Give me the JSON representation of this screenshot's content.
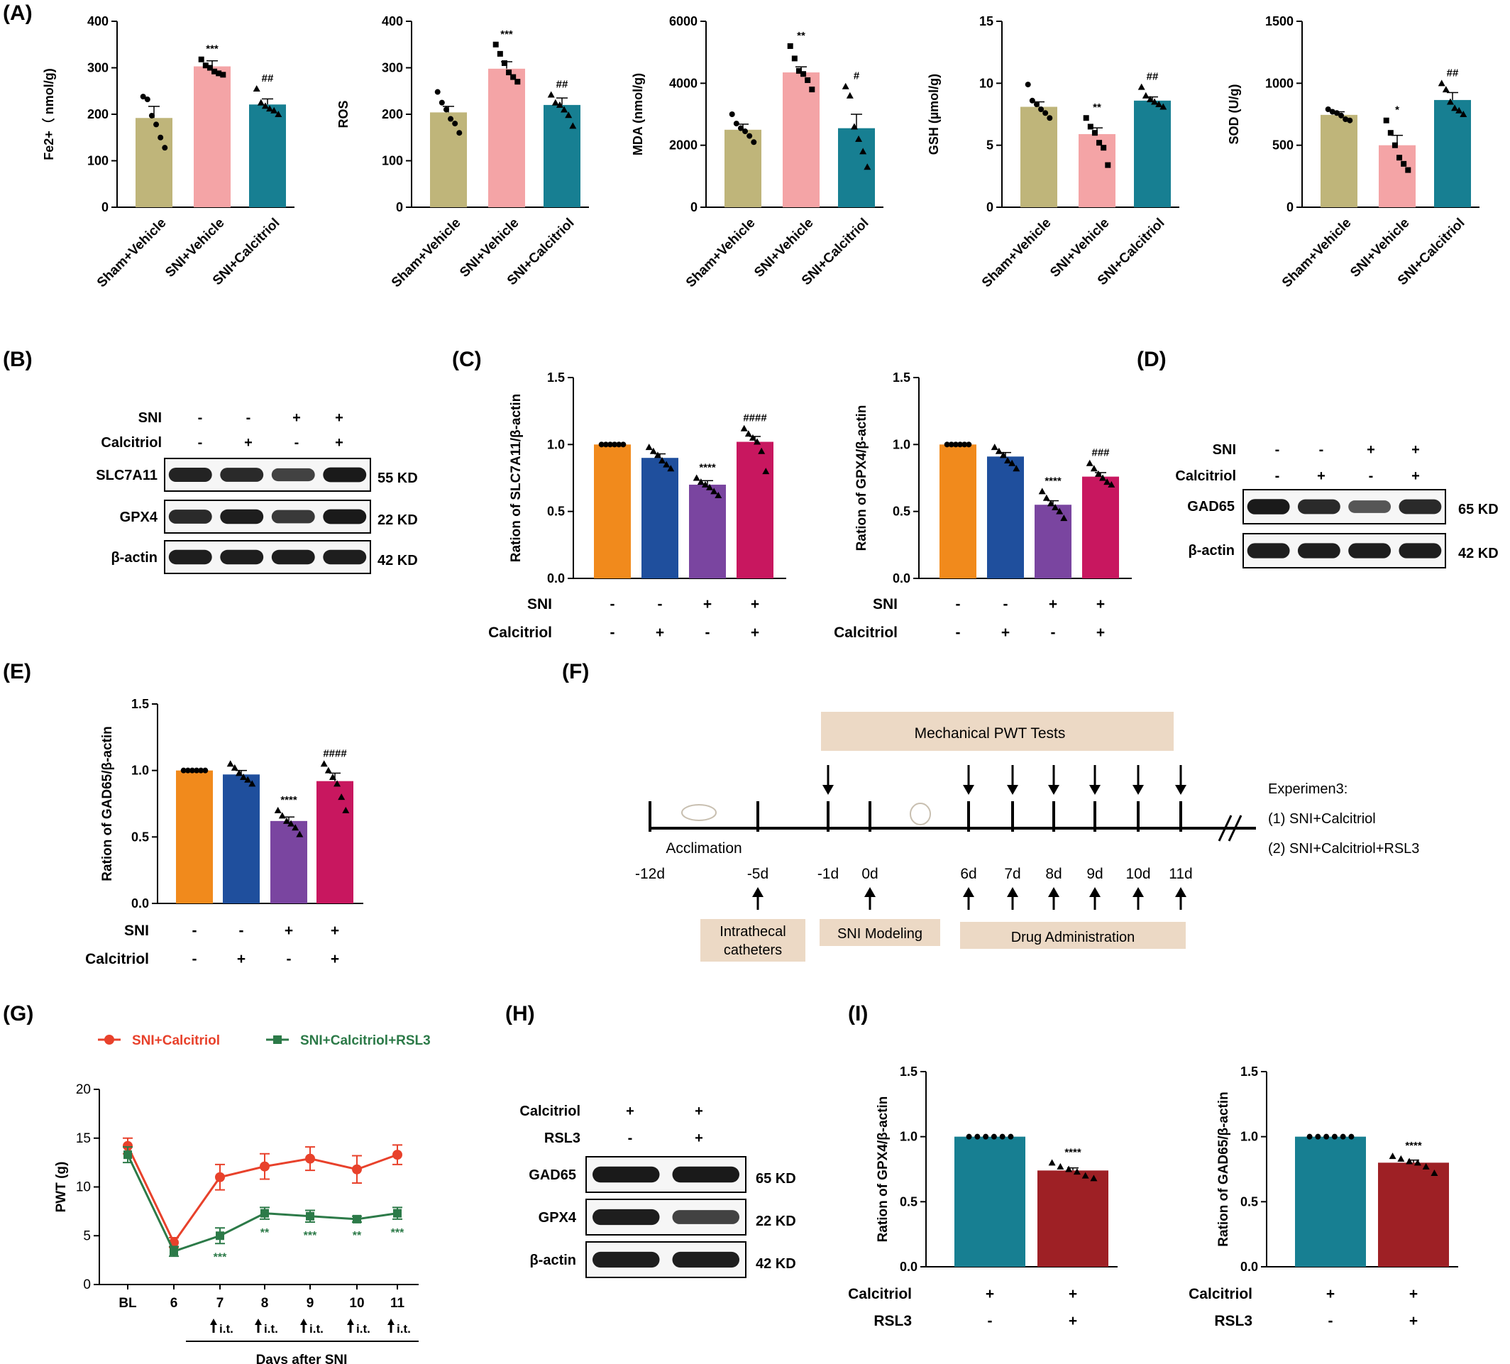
{
  "panel_labels": {
    "A": "(A)",
    "B": "(B)",
    "C": "(C)",
    "D": "(D)",
    "E": "(E)",
    "F": "(F)",
    "G": "(G)",
    "H": "(H)",
    "I": "(I)"
  },
  "colors": {
    "olive": "#bfb57a",
    "pink": "#f4a4a6",
    "teal": "#177f92",
    "orange": "#f18a1c",
    "blue": "#1f4f9d",
    "purple": "#7a45a0",
    "magenta": "#c8175f",
    "darkred": "#9e2025",
    "red_line": "#e8412b",
    "green_line": "#2c7a48",
    "timeline_box": "#ecd9c5"
  },
  "panelA": {
    "categories": [
      "Sham+Vehicle",
      "SNI+Vehicle",
      "SNI+Calcitriol"
    ],
    "charts": [
      {
        "ylabel": "Fe2+（ nmol/g)",
        "ylim": [
          0,
          400
        ],
        "ticks": [
          "0",
          "100",
          "200",
          "300",
          "400"
        ],
        "values": [
          192,
          303,
          221
        ],
        "errors": [
          25,
          12,
          12
        ],
        "points": [
          [
            238,
            232,
            197,
            178,
            150,
            128
          ],
          [
            318,
            305,
            300,
            292,
            288,
            285
          ],
          [
            255,
            225,
            218,
            212,
            208,
            200
          ]
        ],
        "sig": [
          "",
          "***",
          "##"
        ]
      },
      {
        "ylabel": "ROS",
        "ylim": [
          0,
          400
        ],
        "ticks": [
          "0",
          "100",
          "200",
          "300",
          "400"
        ],
        "values": [
          204,
          298,
          220
        ],
        "errors": [
          13,
          15,
          15
        ],
        "points": [
          [
            248,
            225,
            210,
            190,
            180,
            160
          ],
          [
            350,
            330,
            310,
            290,
            280,
            270
          ],
          [
            242,
            225,
            220,
            210,
            198,
            175
          ]
        ],
        "sig": [
          "",
          "***",
          "##"
        ]
      },
      {
        "ylabel": "MDA (nmol/g)",
        "ylim": [
          0,
          6000
        ],
        "ticks": [
          "0",
          "2000",
          "4000",
          "6000"
        ],
        "values": [
          2500,
          4350,
          2550
        ],
        "errors": [
          180,
          180,
          450
        ],
        "points": [
          [
            3000,
            2700,
            2550,
            2450,
            2300,
            2100
          ],
          [
            5200,
            4800,
            4400,
            4300,
            4100,
            3800
          ],
          [
            3900,
            3600,
            2600,
            2200,
            1800,
            1300
          ]
        ],
        "sig": [
          "",
          "**",
          "#"
        ]
      },
      {
        "ylabel": "GSH (µmol/g)",
        "ylim": [
          0,
          15
        ],
        "ticks": [
          "0",
          "5",
          "10",
          "15"
        ],
        "values": [
          8.1,
          5.9,
          8.6
        ],
        "errors": [
          0.4,
          0.5,
          0.3
        ],
        "points": [
          [
            9.9,
            8.6,
            8.3,
            7.9,
            7.6,
            7.2
          ],
          [
            7.2,
            6.5,
            6.0,
            5.2,
            4.8,
            3.4
          ],
          [
            9.7,
            9.0,
            8.7,
            8.5,
            8.3,
            8.1
          ]
        ],
        "sig": [
          "",
          "**",
          "##"
        ]
      },
      {
        "ylabel": "SOD (U/g)",
        "ylim": [
          0,
          1500
        ],
        "ticks": [
          "0",
          "500",
          "1000",
          "1500"
        ],
        "values": [
          745,
          500,
          865
        ],
        "errors": [
          25,
          80,
          60
        ],
        "points": [
          [
            790,
            770,
            760,
            740,
            710,
            700
          ],
          [
            700,
            600,
            500,
            400,
            350,
            300
          ],
          [
            1000,
            950,
            850,
            800,
            780,
            750
          ]
        ],
        "sig": [
          "",
          "*",
          "##"
        ]
      }
    ]
  },
  "panelB": {
    "row_labels": [
      "SNI",
      "Calcitriol"
    ],
    "signs": [
      [
        "-",
        "-",
        "+",
        "+"
      ],
      [
        "-",
        "+",
        "-",
        "+"
      ]
    ],
    "bands": [
      "SLC7A11",
      "GPX4",
      "β-actin"
    ],
    "kd": [
      "55 KD",
      "22 KD",
      "42 KD"
    ]
  },
  "panelC": {
    "charts": [
      {
        "ylabel": "Ration of SLC7A11/β-actin",
        "ylim": [
          0,
          1.5
        ],
        "ticks": [
          "0.0",
          "0.5",
          "1.0",
          "1.5"
        ],
        "values": [
          1.0,
          0.9,
          0.7,
          1.02
        ],
        "errors": [
          0,
          0.03,
          0.03,
          0.04
        ],
        "points": [
          [
            1,
            1,
            1,
            1,
            1,
            1
          ],
          [
            0.98,
            0.95,
            0.92,
            0.88,
            0.85,
            0.82
          ],
          [
            0.75,
            0.72,
            0.7,
            0.68,
            0.65,
            0.62
          ],
          [
            1.12,
            1.08,
            1.05,
            1.02,
            0.95,
            0.8
          ]
        ],
        "sig": [
          "",
          "",
          "****",
          "####"
        ]
      },
      {
        "ylabel": "Ration of GPX4/β-actin",
        "ylim": [
          0,
          1.5
        ],
        "ticks": [
          "0.0",
          "0.5",
          "1.0",
          "1.5"
        ],
        "values": [
          1.0,
          0.91,
          0.55,
          0.76
        ],
        "errors": [
          0,
          0.03,
          0.03,
          0.03
        ],
        "points": [
          [
            1,
            1,
            1,
            1,
            1,
            1
          ],
          [
            0.98,
            0.95,
            0.92,
            0.88,
            0.86,
            0.82
          ],
          [
            0.65,
            0.6,
            0.56,
            0.53,
            0.5,
            0.45
          ],
          [
            0.86,
            0.82,
            0.78,
            0.75,
            0.72,
            0.7
          ]
        ],
        "sig": [
          "",
          "",
          "****",
          "###"
        ]
      }
    ],
    "row_labels": [
      "SNI",
      "Calcitriol"
    ],
    "signs": [
      [
        "-",
        "-",
        "+",
        "+"
      ],
      [
        "-",
        "+",
        "-",
        "+"
      ]
    ]
  },
  "panelD": {
    "row_labels": [
      "SNI",
      "Calcitriol"
    ],
    "signs": [
      [
        "-",
        "-",
        "+",
        "+"
      ],
      [
        "-",
        "+",
        "-",
        "+"
      ]
    ],
    "bands": [
      "GAD65",
      "β-actin"
    ],
    "kd": [
      "65 KD",
      "42 KD"
    ]
  },
  "panelE": {
    "chart": {
      "ylabel": "Ration of GAD65/β-actin",
      "ylim": [
        0,
        1.5
      ],
      "ticks": [
        "0.0",
        "0.5",
        "1.0",
        "1.5"
      ],
      "values": [
        1.0,
        0.97,
        0.62,
        0.92
      ],
      "errors": [
        0,
        0.03,
        0.03,
        0.06
      ],
      "points": [
        [
          1,
          1,
          1,
          1,
          1,
          1
        ],
        [
          1.05,
          1.02,
          0.98,
          0.95,
          0.93,
          0.9
        ],
        [
          0.7,
          0.66,
          0.62,
          0.6,
          0.57,
          0.52
        ],
        [
          1.05,
          1.0,
          0.95,
          0.9,
          0.8,
          0.7
        ]
      ],
      "sig": [
        "",
        "",
        "****",
        "####"
      ]
    },
    "row_labels": [
      "SNI",
      "Calcitriol"
    ],
    "signs": [
      [
        "-",
        "-",
        "+",
        "+"
      ],
      [
        "-",
        "+",
        "-",
        "+"
      ]
    ]
  },
  "panelF": {
    "top_box": "Mechanical PWT Tests",
    "days": [
      "-12d",
      "-5d",
      "-1d",
      "0d",
      "6d",
      "7d",
      "8d",
      "9d",
      "10d",
      "11d"
    ],
    "acclimation": "Acclimation",
    "box_catheter_line1": "Intrathecal",
    "box_catheter_line2": "catheters",
    "box_modeling": "SNI Modeling",
    "box_drug": "Drug Administration",
    "exp_title": "Experimen3:",
    "exp_items": [
      "(1) SNI+Calcitriol",
      "(2) SNI+Calcitriol+RSL3"
    ]
  },
  "panelG": {
    "type": "line",
    "legend": [
      "SNI+Calcitriol",
      "SNI+Calcitriol+RSL3"
    ],
    "ylabel": "PWT (g)",
    "xlabel": "Days after SNI",
    "x": [
      "BL",
      "6",
      "7",
      "8",
      "9",
      "10",
      "11"
    ],
    "ylim": [
      0,
      20
    ],
    "ticks": [
      "0",
      "5",
      "10",
      "15",
      "20"
    ],
    "series": [
      {
        "name": "SNI+Calcitriol",
        "values": [
          14.2,
          4.3,
          11.0,
          12.1,
          12.9,
          11.8,
          13.3
        ],
        "errors": [
          0.8,
          0.5,
          1.3,
          1.3,
          1.2,
          1.4,
          1.0
        ]
      },
      {
        "name": "SNI+Calcitriol+RSL3",
        "values": [
          13.3,
          3.4,
          5.0,
          7.3,
          7.0,
          6.7,
          7.3
        ],
        "errors": [
          0.8,
          0.5,
          0.8,
          0.6,
          0.6,
          0.3,
          0.6
        ]
      }
    ],
    "sig": [
      "",
      "",
      "***",
      "**",
      "***",
      "**",
      "***"
    ],
    "it_label": "i.t."
  },
  "panelH": {
    "row_labels": [
      "Calcitriol",
      "RSL3"
    ],
    "signs": [
      [
        "+",
        "+"
      ],
      [
        "-",
        "+"
      ]
    ],
    "bands": [
      "GAD65",
      "GPX4",
      "β-actin"
    ],
    "kd": [
      "65 KD",
      "22 KD",
      "42 KD"
    ]
  },
  "panelI": {
    "charts": [
      {
        "ylabel": "Ration of GPX4/β-actin",
        "ylim": [
          0,
          1.5
        ],
        "ticks": [
          "0.0",
          "0.5",
          "1.0",
          "1.5"
        ],
        "values": [
          1.0,
          0.74
        ],
        "errors": [
          0,
          0.02
        ],
        "points": [
          [
            1,
            1,
            1,
            1,
            1,
            1
          ],
          [
            0.8,
            0.77,
            0.75,
            0.73,
            0.7,
            0.68
          ]
        ],
        "sig": [
          "",
          "****"
        ]
      },
      {
        "ylabel": "Ration of GAD65/β-actin",
        "ylim": [
          0,
          1.5
        ],
        "ticks": [
          "0.0",
          "0.5",
          "1.0",
          "1.5"
        ],
        "values": [
          1.0,
          0.8
        ],
        "errors": [
          0,
          0.02
        ],
        "points": [
          [
            1,
            1,
            1,
            1,
            1,
            1
          ],
          [
            0.85,
            0.83,
            0.81,
            0.8,
            0.77,
            0.72
          ]
        ],
        "sig": [
          "",
          "****"
        ]
      }
    ],
    "row_labels": [
      "Calcitriol",
      "RSL3"
    ],
    "signs": [
      [
        "+",
        "+"
      ],
      [
        "-",
        "+"
      ]
    ]
  }
}
